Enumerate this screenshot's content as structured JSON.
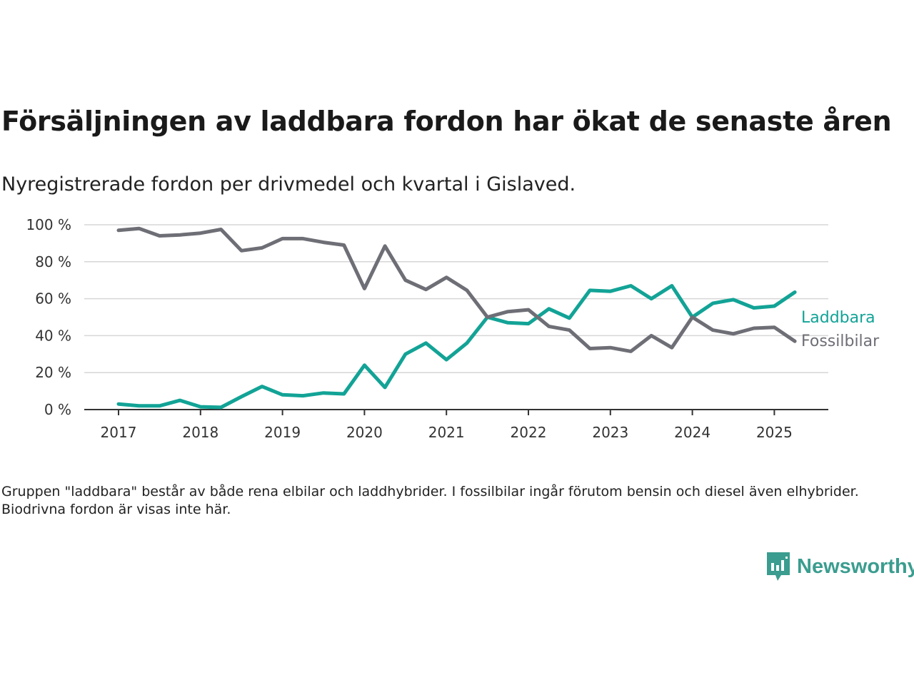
{
  "title": "Försäljningen av laddbara fordon har ökat de senaste åren",
  "subtitle": "Nyregistrerade fordon per drivmedel och kvartal i Gislaved.",
  "footnote": "Gruppen \"laddbara\" består av både rena elbilar och laddhybrider. I fossilbilar ingår förutom bensin och diesel även elhybrider. Biodrivna fordon är visas inte här.",
  "brand": {
    "name": "Newsworthy",
    "icon": "newsworthy-logo-icon",
    "color": "#3a9d8f"
  },
  "chart_data": {
    "type": "line",
    "title": "Försäljningen av laddbara fordon har ökat de senaste åren",
    "subtitle": "Nyregistrerade fordon per drivmedel och kvartal i Gislaved.",
    "xlabel": "",
    "ylabel": "",
    "x": [
      "2017-Q1",
      "2017-Q2",
      "2017-Q3",
      "2017-Q4",
      "2018-Q1",
      "2018-Q2",
      "2018-Q3",
      "2018-Q4",
      "2019-Q1",
      "2019-Q2",
      "2019-Q3",
      "2019-Q4",
      "2020-Q1",
      "2020-Q2",
      "2020-Q3",
      "2020-Q4",
      "2021-Q1",
      "2021-Q2",
      "2021-Q3",
      "2021-Q4",
      "2022-Q1",
      "2022-Q2",
      "2022-Q3",
      "2022-Q4",
      "2023-Q1",
      "2023-Q2",
      "2023-Q3",
      "2023-Q4",
      "2024-Q1",
      "2024-Q2",
      "2024-Q3",
      "2024-Q4",
      "2025-Q1",
      "2025-Q2"
    ],
    "x_ticks": [
      "2017",
      "2018",
      "2019",
      "2020",
      "2021",
      "2022",
      "2023",
      "2024",
      "2025"
    ],
    "y_ticks": [
      "0 %",
      "20 %",
      "40 %",
      "60 %",
      "80 %",
      "100 %"
    ],
    "ylim": [
      0,
      100
    ],
    "grid": true,
    "legend": "end-of-line labels",
    "series": [
      {
        "name": "Laddbara",
        "color": "#12a396",
        "values": [
          3,
          2,
          2,
          5,
          1.5,
          1.2,
          7,
          12.5,
          8,
          7.5,
          9,
          8.5,
          24,
          12,
          30,
          36,
          27,
          36,
          50,
          47,
          46.5,
          54.5,
          49.5,
          64.5,
          64,
          67,
          60,
          67,
          50,
          57.5,
          59.5,
          55,
          56,
          63.5
        ]
      },
      {
        "name": "Fossilbilar",
        "color": "#6e6e76",
        "values": [
          97,
          98,
          94,
          94.5,
          95.5,
          97.5,
          86,
          87.5,
          92.5,
          92.5,
          90.5,
          89,
          65.5,
          88.5,
          70,
          65,
          71.5,
          64.5,
          50,
          53,
          54,
          45,
          43,
          33,
          33.5,
          31.5,
          40,
          33.5,
          50,
          43,
          41,
          44,
          44.5,
          37
        ]
      }
    ]
  }
}
